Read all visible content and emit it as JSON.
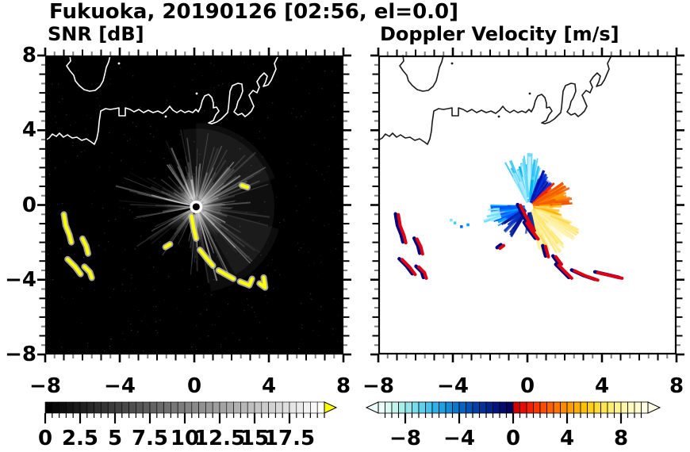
{
  "title": "Fukuoka, 20190126 [02:56, el=0.0]",
  "panels": {
    "snr": {
      "label": "SNR [dB]"
    },
    "doppler": {
      "label": "Doppler Velocity [m/s]"
    }
  },
  "axes": {
    "x_range": [
      -8,
      8
    ],
    "y_range": [
      -8,
      8
    ],
    "x_tick_values": [
      -8,
      -4,
      0,
      4,
      8
    ],
    "y_tick_values": [
      8,
      4,
      0,
      -4,
      -8
    ],
    "x_tick_labels": [
      "−8",
      "−4",
      "0",
      "4",
      "8"
    ],
    "y_tick_labels": [
      "8",
      "4",
      "0",
      "−4",
      "−8"
    ],
    "minor_step": 0.5
  },
  "colorbars": {
    "snr": {
      "min": 0,
      "max": 20,
      "block_step": 0.5,
      "label_values": [
        0,
        2.5,
        5,
        7.5,
        10,
        12.5,
        15,
        17.5
      ],
      "tick_labels": [
        "0",
        "2.5",
        "5",
        "7.5",
        "10",
        "12.5",
        "15",
        "17.5"
      ],
      "gradient_start": "#000000",
      "gradient_end": "#ffffff",
      "overflow_color": "#ffff00"
    },
    "doppler": {
      "min": -10,
      "max": 10,
      "block_step": 0.5,
      "label_values": [
        -8,
        -4,
        0,
        4,
        8
      ],
      "tick_labels": [
        "−8",
        "−4",
        "0",
        "4",
        "8"
      ],
      "colors": [
        "#EDFFFA",
        "#D8FAF2",
        "#C2F4EC",
        "#ABEEE9",
        "#93E6E9",
        "#7ADCEB",
        "#60D0ED",
        "#45C2EE",
        "#2FB2EA",
        "#1FA0E2",
        "#148CD8",
        "#0B78CC",
        "#0664C0",
        "#0452B4",
        "#0341A8",
        "#02319A",
        "#02238C",
        "#01167E",
        "#010C6E",
        "#01045C",
        "#D40000",
        "#E60D00",
        "#F22100",
        "#FB3600",
        "#FF4C00",
        "#FF6200",
        "#FF7700",
        "#FF8B00",
        "#FF9E00",
        "#FFB000",
        "#FFC100",
        "#FFD014",
        "#FFDC32",
        "#FFE651",
        "#FFEE71",
        "#FFF38F",
        "#FFF7A8",
        "#FFFABE",
        "#FFFCD2",
        "#FFFEE4"
      ]
    }
  },
  "coastline": {
    "note": "panel-local pixel coords, identical in both panels",
    "paths": [
      "M31,0 L32,7 27,13 31,19 36,25 38,32 43,38 49,43 56,45 63,44 69,39 73,32 75,24 77,15 80,8 82,0",
      "M0,107 L5,104 9,99 14,102 18,98 23,103 28,100 34,104 40,103 46,107 52,105 58,109 62,112 65,105 67,95 68,84 70,70 76,67 82,68 88,67 93,66 93,76 101,76 101,66 107,68 112,71 118,68 124,72 130,69 136,72 142,70 148,73 153,69 157,64 161,69 166,72 171,69 176,72 181,70 186,72 190,68 193,71 196,65 198,57 201,51 206,49 210,53 212,60 212,66 216,65 219,70 215,75 212,82 206,85 210,86 216,84 222,80 226,76 230,72 231,66 233,45 236,38 243,35 248,36 249,45 246,53 243,58 241,66 238,71 243,75 248,73 252,77 256,74 260,70 263,64 260,57 257,50 262,44 267,47 270,40 267,33 271,27 276,22 280,26 278,33 275,39 281,37 285,31 288,24 291,17 289,10 292,4 294,0"
    ],
    "islets": [
      [
        191,
        48
      ],
      [
        93,
        10
      ],
      [
        152,
        77
      ]
    ]
  },
  "chart_data": [
    {
      "type": "heatmap",
      "panel": "snr",
      "title": "SNR [dB]",
      "units": "dB",
      "x_range": [
        -8,
        8
      ],
      "y_range": [
        -8,
        8
      ],
      "background": "#000000",
      "colorbar_range": [
        0,
        20
      ],
      "colorbar_labels": [
        0,
        2.5,
        5,
        7.5,
        10,
        12.5,
        15,
        17.5
      ],
      "radar_center_xy": [
        0.1,
        -0.1
      ],
      "clutter_sectors_deg": [
        {
          "from": -95,
          "to": 115,
          "r_km": 4.0,
          "density": 130
        },
        {
          "from": 115,
          "to": 150,
          "r_km": 2.6,
          "density": 26
        },
        {
          "from": 150,
          "to": 215,
          "r_km": 4.6,
          "density": 40
        },
        {
          "from": 215,
          "to": 268,
          "r_km": 3.0,
          "density": 24
        }
      ],
      "strong_echoes_gt20dB": [
        [
          [
            -7.0,
            -0.5
          ],
          [
            -6.9,
            -1.1
          ],
          [
            -6.7,
            -1.6
          ],
          [
            -6.6,
            -2.0
          ]
        ],
        [
          [
            -6.0,
            -1.8
          ],
          [
            -5.8,
            -2.2
          ],
          [
            -5.7,
            -2.6
          ]
        ],
        [
          [
            -6.8,
            -2.9
          ],
          [
            -6.4,
            -3.3
          ],
          [
            -6.1,
            -3.7
          ]
        ],
        [
          [
            -5.9,
            -3.3
          ],
          [
            -5.6,
            -3.6
          ],
          [
            -5.5,
            -3.9
          ]
        ],
        [
          [
            -1.55,
            -2.25
          ],
          [
            -1.3,
            -2.1
          ]
        ],
        [
          [
            -0.15,
            -0.6
          ],
          [
            -0.05,
            -1.2
          ],
          [
            0.1,
            -1.8
          ]
        ],
        [
          [
            0.3,
            -2.4
          ],
          [
            0.7,
            -2.9
          ],
          [
            1.0,
            -3.25
          ]
        ],
        [
          [
            1.3,
            -3.5
          ],
          [
            1.65,
            -3.7
          ],
          [
            2.1,
            -3.95
          ]
        ],
        [
          [
            2.45,
            -4.1
          ],
          [
            2.95,
            -4.3
          ],
          [
            3.1,
            -3.95
          ]
        ],
        [
          [
            3.5,
            -4.2
          ],
          [
            3.8,
            -4.42
          ],
          [
            3.72,
            -3.88
          ]
        ],
        [
          [
            2.55,
            1.05
          ],
          [
            2.85,
            0.95
          ]
        ]
      ]
    },
    {
      "type": "heatmap",
      "panel": "doppler_velocity",
      "title": "Doppler Velocity [m/s]",
      "units": "m/s",
      "x_range": [
        -8,
        8
      ],
      "y_range": [
        -8,
        8
      ],
      "background": "#ffffff",
      "colorbar_range": [
        -10,
        10
      ],
      "colorbar_labels": [
        -8,
        -4,
        0,
        4,
        8
      ],
      "radar_center_xy": [
        0.1,
        -0.1
      ],
      "velocity_fans_deg": [
        {
          "from": 72,
          "to": 122,
          "r_km": 2.9,
          "n": 46,
          "colors": [
            "#5FD8FF",
            "#9FE9FF",
            "#00B4F0",
            "#CFF4FF",
            "#30C4F8"
          ]
        },
        {
          "from": 44,
          "to": 72,
          "r_km": 2.2,
          "n": 38,
          "fill": "#0033DD",
          "fop": 0.35,
          "colors": [
            "#0033DD",
            "#0011AA",
            "#2255EE"
          ]
        },
        {
          "from": 36,
          "to": 46,
          "r_km": 1.9,
          "n": 10,
          "colors": [
            "#E00000",
            "#FF2000"
          ]
        },
        {
          "from": 4,
          "to": 36,
          "r_km": 2.4,
          "n": 40,
          "fill": "#FF8800",
          "fop": 0.5,
          "colors": [
            "#FF7A00",
            "#FF9100",
            "#F05800"
          ]
        },
        {
          "from": -30,
          "to": 6,
          "r_km": 1.9,
          "n": 30,
          "colors": [
            "#FFC63C",
            "#FFDE7A",
            "#FFB400"
          ]
        },
        {
          "from": -78,
          "to": -18,
          "r_km": 3.0,
          "n": 64,
          "fill": "#FFF5C0",
          "fop": 0.55,
          "colors": [
            "#FFF3B0",
            "#FFEE96",
            "#FFE878",
            "#FFDB55"
          ]
        },
        {
          "from": 178,
          "to": 212,
          "r_km": 2.1,
          "n": 30,
          "fill": "#0048F0",
          "fop": 0.3,
          "colors": [
            "#0050FF",
            "#0080FF",
            "#00A8FF"
          ]
        },
        {
          "from": 182,
          "to": 200,
          "r_km": 2.6,
          "rmin_km": 1.6,
          "n": 12,
          "colors": [
            "#70E0FF",
            "#A0ECFF"
          ]
        },
        {
          "from": 212,
          "to": 240,
          "r_km": 1.9,
          "n": 16,
          "colors": [
            "#000E90",
            "#0030C0"
          ]
        },
        {
          "from": 258,
          "to": 288,
          "r_km": 1.5,
          "n": 12,
          "colors": [
            "#000A80",
            "#102DA0"
          ]
        }
      ],
      "scatter_dots": [
        {
          "xy": [
            -3.9,
            -0.95
          ],
          "color": "#40C8FF"
        },
        {
          "xy": [
            -3.55,
            -1.15
          ],
          "color": "#0060FF"
        },
        {
          "xy": [
            -3.2,
            -1.05
          ],
          "color": "#00A0FF"
        },
        {
          "xy": [
            -4.1,
            -0.8
          ],
          "color": "#80E0FF"
        }
      ],
      "clutter_echo_colors": {
        "negative": "#000080",
        "positive": "#E00010"
      },
      "clutter_echoes": [
        [
          [
            -7.0,
            -0.5
          ],
          [
            -6.9,
            -1.1
          ],
          [
            -6.7,
            -1.6
          ],
          [
            -6.6,
            -2.0
          ]
        ],
        [
          [
            -6.0,
            -1.8
          ],
          [
            -5.8,
            -2.2
          ],
          [
            -5.7,
            -2.6
          ]
        ],
        [
          [
            -6.8,
            -2.9
          ],
          [
            -6.4,
            -3.3
          ],
          [
            -6.1,
            -3.7
          ]
        ],
        [
          [
            -5.9,
            -3.3
          ],
          [
            -5.6,
            -3.6
          ],
          [
            -5.5,
            -3.9
          ]
        ],
        [
          [
            -1.55,
            -2.3
          ],
          [
            -1.35,
            -2.15
          ]
        ],
        [
          [
            -0.45,
            0.0
          ],
          [
            -0.2,
            -0.5
          ],
          [
            0.05,
            -0.95
          ],
          [
            0.3,
            -1.35
          ]
        ],
        [
          [
            -0.1,
            -0.95
          ],
          [
            0.2,
            -1.4
          ],
          [
            0.5,
            -1.8
          ]
        ],
        [
          [
            0.9,
            -2.2
          ],
          [
            1.05,
            -2.75
          ]
        ],
        [
          [
            1.45,
            -2.75
          ],
          [
            1.75,
            -3.15
          ]
        ],
        [
          [
            1.6,
            -3.2
          ],
          [
            2.0,
            -3.6
          ],
          [
            2.3,
            -3.9
          ]
        ],
        [
          [
            2.45,
            -3.5
          ],
          [
            3.1,
            -3.8
          ],
          [
            3.7,
            -4.0
          ]
        ],
        [
          [
            3.7,
            -3.6
          ],
          [
            4.35,
            -3.75
          ],
          [
            5.0,
            -3.9
          ]
        ]
      ]
    }
  ]
}
